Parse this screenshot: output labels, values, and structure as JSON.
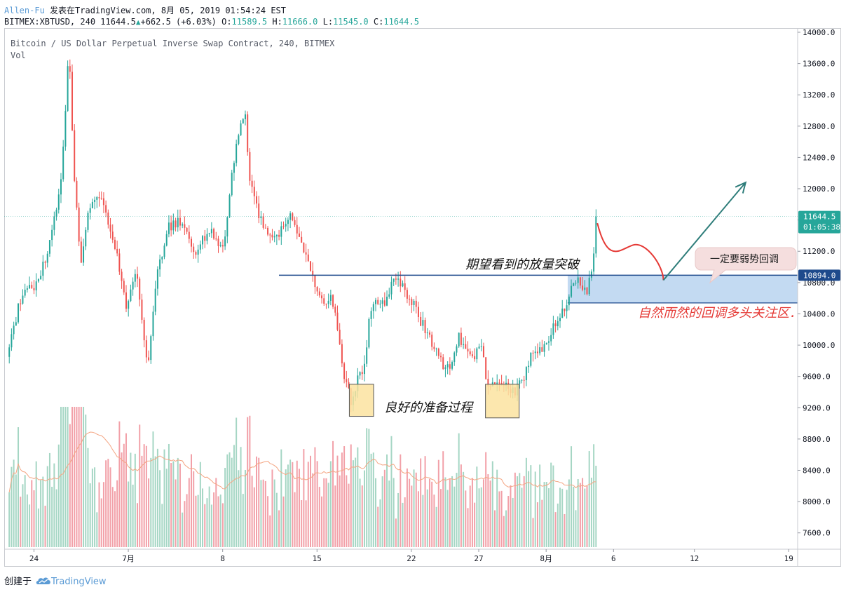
{
  "header": {
    "author": "Allen-Fu",
    "published_prefix": " 发表在TradingView.com, ",
    "published_date": "8月 05, 2019 01:54:24 EST",
    "symbol": "BITMEX:XBTUSD, 240",
    "last": "11644.5",
    "change_up_icon": "up-triangle-icon",
    "change": "+662.5 (+6.03%)",
    "o_label": "O:",
    "o_value": "11589.5",
    "h_label": "H:",
    "h_value": "11666.0",
    "l_label": "L:",
    "l_value": "11545.0",
    "c_label": "C:",
    "c_value": "11644.5"
  },
  "legend": {
    "title": "Bitcoin / US Dollar Perpetual Inverse Swap Contract, 240, BITMEX",
    "vol": "Vol"
  },
  "footer": {
    "created": "创建于",
    "brand": "TradingView",
    "logo_icon": "tradingview-cloud-icon"
  },
  "colors": {
    "up": "#26a69a",
    "down": "#ef5350",
    "vol_up": "#a5d6c4",
    "vol_down": "#f2a0a8",
    "ma": "#f4a582",
    "hline": "#1e4a8c",
    "zone": "#b9d3f0",
    "box": "#fce3a0",
    "arrow": "#2e7d7a",
    "curve": "#e53935",
    "callout": "#f5dede"
  },
  "chart_data": {
    "type": "candlestick",
    "y_axis": {
      "min": 7400,
      "max": 14000,
      "ticks": [
        "14000.0",
        "13600.0",
        "13200.0",
        "12800.0",
        "12400.0",
        "12000.0",
        "11600.0",
        "11200.0",
        "10800.0",
        "10400.0",
        "10000.0",
        "9600.0",
        "9200.0",
        "8800.0",
        "8400.0",
        "8000.0",
        "7600.0"
      ]
    },
    "price_labels": [
      {
        "value": 11644.5,
        "text": "11644.5",
        "sub": "01:05:38",
        "color": "#26a69a"
      },
      {
        "value": 10894.0,
        "text": "10894.0",
        "color": "#1e4a8c"
      }
    ],
    "x_ticks": [
      {
        "day": 2,
        "label": "24"
      },
      {
        "day": 9,
        "label": "7月"
      },
      {
        "day": 16,
        "label": "8"
      },
      {
        "day": 23,
        "label": "15"
      },
      {
        "day": 30,
        "label": "22"
      },
      {
        "day": 35,
        "label": "27"
      },
      {
        "day": 40,
        "label": "8月"
      },
      {
        "day": 45,
        "label": "6"
      },
      {
        "day": 51,
        "label": "12"
      },
      {
        "day": 58,
        "label": "19"
      }
    ],
    "x_range": [
      0,
      58.4
    ],
    "anchors": [
      {
        "day": 0,
        "price": 9850
      },
      {
        "day": 1,
        "price": 10600
      },
      {
        "day": 2,
        "price": 10750
      },
      {
        "day": 3,
        "price": 11150
      },
      {
        "day": 4,
        "price": 12100
      },
      {
        "day": 4.6,
        "price": 13800
      },
      {
        "day": 5,
        "price": 12100
      },
      {
        "day": 5.5,
        "price": 11000
      },
      {
        "day": 6,
        "price": 11700
      },
      {
        "day": 7,
        "price": 11900
      },
      {
        "day": 8,
        "price": 11300
      },
      {
        "day": 8.8,
        "price": 10500
      },
      {
        "day": 9.6,
        "price": 10900
      },
      {
        "day": 10.4,
        "price": 9700
      },
      {
        "day": 11.2,
        "price": 11000
      },
      {
        "day": 12,
        "price": 11500
      },
      {
        "day": 13,
        "price": 11600
      },
      {
        "day": 14,
        "price": 11150
      },
      {
        "day": 15,
        "price": 11500
      },
      {
        "day": 16,
        "price": 11200
      },
      {
        "day": 16.5,
        "price": 11900
      },
      {
        "day": 17,
        "price": 12600
      },
      {
        "day": 17.7,
        "price": 12950
      },
      {
        "day": 18,
        "price": 12100
      },
      {
        "day": 19,
        "price": 11500
      },
      {
        "day": 20,
        "price": 11400
      },
      {
        "day": 21,
        "price": 11700
      },
      {
        "day": 22,
        "price": 11250
      },
      {
        "day": 22.5,
        "price": 10950
      },
      {
        "day": 23,
        "price": 10700
      },
      {
        "day": 23.5,
        "price": 10500
      },
      {
        "day": 24,
        "price": 10600
      },
      {
        "day": 24.6,
        "price": 10200
      },
      {
        "day": 25,
        "price": 9600
      },
      {
        "day": 25.6,
        "price": 9250
      },
      {
        "day": 26,
        "price": 9550
      },
      {
        "day": 26.5,
        "price": 9700
      },
      {
        "day": 27,
        "price": 10500
      },
      {
        "day": 28,
        "price": 10550
      },
      {
        "day": 28.8,
        "price": 10850
      },
      {
        "day": 29.5,
        "price": 10700
      },
      {
        "day": 30.2,
        "price": 10500
      },
      {
        "day": 31,
        "price": 10200
      },
      {
        "day": 32,
        "price": 9900
      },
      {
        "day": 32.5,
        "price": 9650
      },
      {
        "day": 33,
        "price": 9800
      },
      {
        "day": 33.5,
        "price": 10100
      },
      {
        "day": 34,
        "price": 9950
      },
      {
        "day": 34.6,
        "price": 9800
      },
      {
        "day": 35.2,
        "price": 10050
      },
      {
        "day": 35.6,
        "price": 9400
      },
      {
        "day": 36.2,
        "price": 9500
      },
      {
        "day": 37,
        "price": 9500
      },
      {
        "day": 37.6,
        "price": 9400
      },
      {
        "day": 38.3,
        "price": 9550
      },
      {
        "day": 39,
        "price": 9950
      },
      {
        "day": 40,
        "price": 9950
      },
      {
        "day": 40.6,
        "price": 10250
      },
      {
        "day": 41.5,
        "price": 10500
      },
      {
        "day": 42,
        "price": 10850
      },
      {
        "day": 42.5,
        "price": 10800
      },
      {
        "day": 43,
        "price": 10650
      },
      {
        "day": 43.4,
        "price": 10950
      },
      {
        "day": 43.7,
        "price": 11600
      }
    ],
    "volume_axis_max": 8900,
    "annotations": {
      "expect_breakout": "期望看到的放量突破",
      "good_prep": "良好的准备过程",
      "weak_pullback": "一定要弱势回调",
      "natural_pullback": "自然而然的回调多头关注区."
    },
    "hline_price": 10894.0,
    "zone": {
      "from_day": 41.6,
      "to_day": 58.4,
      "top": 10894,
      "bottom": 10540
    },
    "boxes": [
      {
        "from_day": 25.4,
        "to_day": 27.2,
        "top": 9500,
        "bottom": 9090
      },
      {
        "from_day": 35.5,
        "to_day": 38.0,
        "top": 9500,
        "bottom": 9070
      }
    ],
    "projection": {
      "curve": [
        [
          43.8,
          11560
        ],
        [
          45.5,
          11050
        ],
        [
          47.5,
          11280
        ],
        [
          48.7,
          10830
        ]
      ],
      "arrow": [
        [
          48.7,
          10830
        ],
        [
          54.8,
          12080
        ]
      ]
    }
  }
}
